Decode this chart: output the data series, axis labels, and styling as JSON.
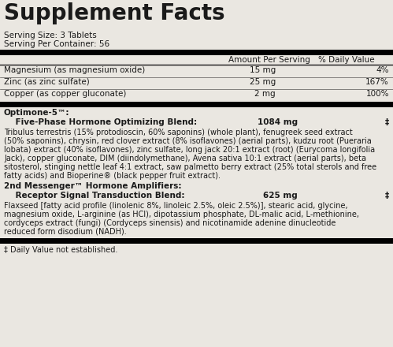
{
  "title": "Supplement Facts",
  "serving_size": "Serving Size: 3 Tablets",
  "serving_per": "Serving Per Container: 56",
  "header_amount": "Amount Per Serving",
  "header_dv": "% Daily Value",
  "ingredients": [
    {
      "name": "Magnesium (as magnesium oxide)",
      "amount": "15 mg",
      "dv": "4%"
    },
    {
      "name": "Zinc (as zinc sulfate)",
      "amount": "25 mg",
      "dv": "167%"
    },
    {
      "name": "Copper (as copper gluconate)",
      "amount": "2 mg",
      "dv": "100%"
    }
  ],
  "blend1_brand": "Optimone-5™:",
  "blend1_label": "    Five-Phase Hormone Optimizing Blend:",
  "blend1_amount": "1084 mg",
  "blend1_dv": "‡",
  "wrapped_blend1": [
    "Tribulus terrestris (15% protodioscin, 60% saponins) (whole plant), fenugreek seed extract",
    "(50% saponins), chrysin, red clover extract (8% isoflavones) (aerial parts), kudzu root (Pueraria",
    "lobata) extract (40% isoflavones), zinc sulfate, long jack 20:1 extract (root) (Eurycoma longifolia",
    "Jack), copper gluconate, DIM (diindolymethane), Avena sativa 10:1 extract (aerial parts), beta",
    "sitosterol, stinging nettle leaf 4:1 extract, saw palmetto berry extract (25% total sterols and free",
    "fatty acids) and Bioperine® (black pepper fruit extract)."
  ],
  "blend2_brand": "2nd Messenger™ Hormone Amplifiers:",
  "blend2_label": "    Receptor Signal Transduction Blend:",
  "blend2_amount": "625 mg",
  "blend2_dv": "‡",
  "wrapped_blend2": [
    "Flaxseed [fatty acid profile (linolenic 8%, linoleic 2.5%, oleic 2.5%)], stearic acid, glycine,",
    "magnesium oxide, L-arginine (as HCl), dipotassium phosphate, DL-malic acid, L-methionine,",
    "cordyceps extract (fungi) (Cordyceps sinensis) and nicotinamide adenine dinucleotide",
    "reduced form disodium (NADH)."
  ],
  "footnote": "‡ Daily Value not established.",
  "bg_color": "#eae7e1",
  "text_color": "#1a1a1a",
  "bar_color": "#000000",
  "title_fontsize": 20,
  "body_fontsize": 7.5,
  "small_fontsize": 7.0
}
